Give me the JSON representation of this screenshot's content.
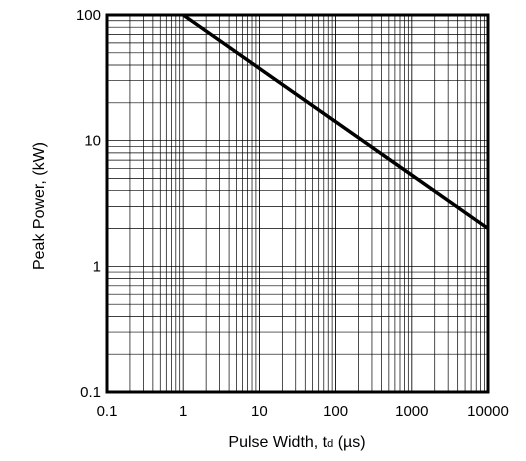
{
  "chart_data": {
    "type": "line",
    "x_scale": "log",
    "y_scale": "log",
    "xlim": [
      0.1,
      10000
    ],
    "ylim": [
      0.1,
      100
    ],
    "grid": true,
    "x_ticks": [
      "0.1",
      "1",
      "10",
      "100",
      "1000",
      "10000"
    ],
    "x_tick_values": [
      0.1,
      1,
      10,
      100,
      1000,
      10000
    ],
    "y_ticks": [
      "0.1",
      "1",
      "10",
      "100"
    ],
    "y_tick_values": [
      0.1,
      1,
      10,
      100
    ],
    "xlabel_main": "Pulse Width, t",
    "xlabel_sub": "d",
    "xlabel_unit": " (µs)",
    "ylabel": "Peak Power, (kW)",
    "series": [
      {
        "x": [
          1,
          10000
        ],
        "y": [
          100,
          2
        ]
      }
    ]
  }
}
